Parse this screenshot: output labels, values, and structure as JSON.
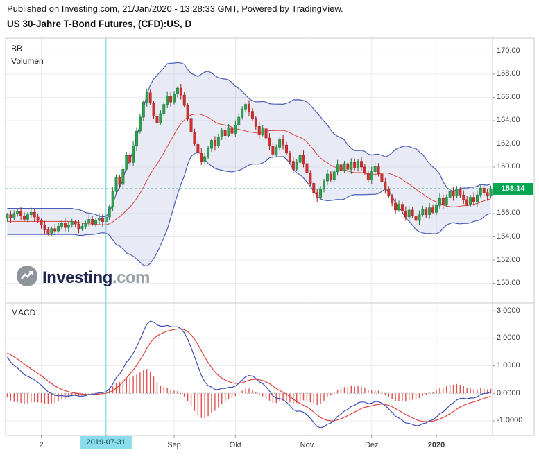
{
  "header": {
    "published_line": "Published on Investing.com, 21/Jan/2020 - 13:28:33 GMT, Powered by TradingView.",
    "title": "US 30-Jahre T-Bond Futures, (CFD):US, D"
  },
  "main_panel": {
    "indicator_labels": [
      "BB",
      "Volumen"
    ],
    "last_price": "158.14",
    "watermark": {
      "brand": "Investing",
      "suffix": ".com"
    }
  },
  "macd_panel": {
    "label": "MACD"
  },
  "price_axis": {
    "ticks": [
      "170.00",
      "168.00",
      "166.00",
      "164.00",
      "162.00",
      "160.00",
      "156.00",
      "154.00",
      "152.00",
      "150.00"
    ],
    "tick_values": [
      170,
      168,
      166,
      164,
      162,
      160,
      156,
      154,
      152,
      150
    ]
  },
  "macd_axis": {
    "ticks": [
      "3.0000",
      "2.0000",
      "1.0000",
      "0.0000",
      "-1.0000"
    ],
    "tick_values": [
      3,
      2,
      1,
      0,
      -1
    ]
  },
  "time_axis": {
    "highlighted_label": "2019-07-31",
    "labels": [
      {
        "text": "2",
        "index": 10
      },
      {
        "text": "2019-07-31",
        "index": 29,
        "highlighted": true
      },
      {
        "text": "Sep",
        "index": 49
      },
      {
        "text": "Okt",
        "index": 67
      },
      {
        "text": "Nov",
        "index": 88
      },
      {
        "text": "Dez",
        "index": 107
      },
      {
        "text": "2020",
        "index": 126,
        "bold": true
      }
    ]
  },
  "chart_data": [
    {
      "type": "candlestick",
      "title": "US 30-Jahre T-Bond Futures, (CFD):US, D",
      "ylim": [
        148.3,
        171.1
      ],
      "price_gridline_step": 2,
      "last_price": 158.14,
      "first_open": 155.6,
      "open_rule": "previous_close",
      "x_marker": {
        "label": "2019-07-31",
        "index": 29
      },
      "x_ticks": [
        "2",
        "2019-07-31",
        "Sep",
        "Okt",
        "Nov",
        "Dez",
        "2020"
      ],
      "indicators": [
        {
          "name": "Bollinger Bands",
          "period": 20,
          "stddev": 2,
          "basis": "SMA"
        },
        {
          "name": "Volumen"
        }
      ],
      "closes": [
        155.9,
        155.6,
        156.0,
        156.2,
        155.8,
        155.5,
        155.9,
        156.1,
        155.7,
        155.4,
        155.0,
        154.6,
        154.3,
        154.7,
        154.5,
        154.9,
        155.2,
        154.8,
        155.0,
        155.3,
        155.1,
        154.7,
        154.9,
        155.2,
        155.5,
        155.1,
        155.4,
        155.6,
        155.3,
        155.7,
        156.6,
        157.9,
        159.1,
        158.5,
        159.8,
        161.0,
        160.4,
        161.8,
        163.1,
        164.3,
        165.6,
        166.4,
        165.5,
        164.4,
        163.8,
        164.6,
        165.4,
        166.1,
        165.6,
        166.3,
        166.8,
        166.2,
        165.3,
        164.2,
        163.0,
        162.0,
        161.2,
        160.5,
        160.9,
        161.6,
        162.3,
        161.8,
        162.6,
        163.2,
        162.7,
        163.4,
        162.9,
        163.6,
        164.3,
        165.0,
        165.4,
        164.8,
        164.2,
        163.5,
        162.8,
        163.3,
        162.5,
        161.8,
        161.1,
        161.7,
        162.4,
        161.9,
        161.2,
        160.5,
        159.8,
        160.4,
        161.0,
        160.3,
        159.5,
        158.6,
        157.8,
        157.4,
        158.1,
        158.8,
        159.4,
        158.9,
        159.6,
        160.2,
        159.7,
        160.3,
        159.8,
        160.4,
        159.9,
        160.5,
        160.0,
        159.5,
        158.9,
        159.6,
        160.1,
        159.4,
        158.7,
        158.1,
        157.5,
        156.9,
        156.3,
        156.8,
        156.2,
        155.7,
        156.3,
        155.8,
        155.4,
        155.9,
        156.4,
        155.9,
        156.5,
        156.1,
        156.7,
        157.3,
        156.8,
        157.4,
        157.9,
        157.5,
        158.1,
        157.6,
        157.2,
        156.8,
        157.4,
        157.0,
        157.6,
        158.2,
        157.8,
        157.5,
        158.14
      ]
    },
    {
      "type": "line",
      "title": "MACD",
      "params": {
        "fast": 12,
        "slow": 26,
        "signal": 9
      },
      "ylim": [
        -1.53,
        3.28
      ],
      "series_source": "macd, signal and histogram computed from the closes of chart_data[0]",
      "y_ticks": [
        "3.0000",
        "2.0000",
        "1.0000",
        "0.0000",
        "-1.0000"
      ]
    }
  ],
  "colors": {
    "up": "#2fa04c",
    "up_border": "#1a763a",
    "down": "#d32f2f",
    "down_border": "#9c1f18",
    "bb_line": "#4a5db5",
    "bb_fill": "rgba(74,93,181,0.13)",
    "bb_mid": "#e0403c",
    "last_price_line": "#00a651",
    "badge_bg": "#00a651",
    "badge_text": "#ffffff",
    "marker_line": "#62cfe3",
    "marker_badge_bg": "#8bdcec",
    "marker_badge_text": "#0b3a43",
    "macd_line": "#3a4db8",
    "signal_line": "#e0403c",
    "histogram": "#e05252",
    "grid": "#ececec",
    "frame": "#c9c9c9",
    "axis_text": "#3c3c3c"
  }
}
